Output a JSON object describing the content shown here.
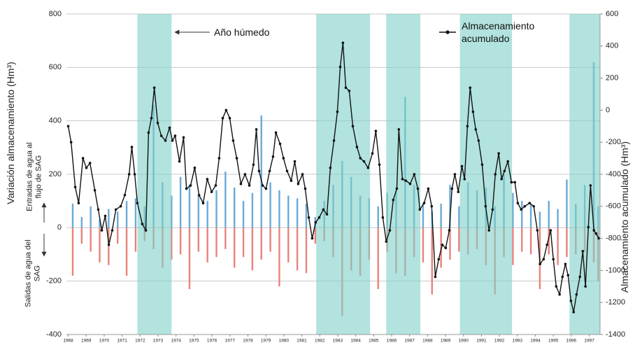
{
  "chart_data": {
    "type": "combo",
    "y_label": "Variación almacenamiento (Hm³)",
    "y2_label": "Almacenamiento acumulado (Hm³)",
    "annotation": "Año húmedo",
    "wet_color": "#7fd0c8",
    "wet_periods": [
      [
        1971.85,
        1973.75
      ],
      [
        1981.8,
        1984.8
      ],
      [
        1985.7,
        1987.6
      ],
      [
        1989.8,
        1992.7
      ],
      [
        1995.9,
        1997.6
      ]
    ],
    "xlim": [
      1967.9,
      1997.6
    ],
    "xticks": [
      1968,
      1969,
      1970,
      1971,
      1972,
      1973,
      1974,
      1975,
      1976,
      1977,
      1978,
      1979,
      1980,
      1981,
      1982,
      1983,
      1984,
      1985,
      1986,
      1987,
      1988,
      1989,
      1990,
      1991,
      1992,
      1993,
      1994,
      1995,
      1996,
      1997
    ],
    "ylim": [
      -400,
      800
    ],
    "yticks": [
      -400,
      -200,
      0,
      200,
      400,
      600,
      800
    ],
    "y2lim": [
      -1400,
      600
    ],
    "y2ticks": [
      -1400,
      -1200,
      -1000,
      -800,
      -600,
      -400,
      -200,
      0,
      200,
      400,
      600
    ],
    "grid": true,
    "series": [
      {
        "name": "Entradas de agua al flujo de SAG",
        "type": "bar",
        "color": "#6aaad8",
        "x": [
          1968.25,
          1968.75,
          1969.25,
          1969.75,
          1970.25,
          1970.75,
          1971.25,
          1971.75,
          1972.25,
          1972.75,
          1973.25,
          1973.75,
          1974.25,
          1974.75,
          1975.25,
          1975.75,
          1976.25,
          1976.75,
          1977.25,
          1977.75,
          1978.25,
          1978.75,
          1979.25,
          1979.75,
          1980.25,
          1980.75,
          1981.25,
          1981.75,
          1982.25,
          1982.75,
          1983.25,
          1983.75,
          1984.25,
          1984.75,
          1985.25,
          1985.75,
          1986.25,
          1986.75,
          1987.25,
          1987.75,
          1988.25,
          1988.75,
          1989.25,
          1989.75,
          1990.25,
          1990.75,
          1991.25,
          1991.75,
          1992.25,
          1992.75,
          1993.25,
          1993.75,
          1994.25,
          1994.75,
          1995.25,
          1995.75,
          1996.25,
          1996.75,
          1997.25,
          1997.5
        ],
        "values": [
          90,
          40,
          80,
          30,
          70,
          60,
          100,
          110,
          80,
          460,
          170,
          120,
          190,
          160,
          120,
          100,
          140,
          210,
          150,
          100,
          130,
          420,
          170,
          140,
          120,
          110,
          90,
          40,
          100,
          160,
          250,
          190,
          120,
          110,
          80,
          130,
          140,
          490,
          160,
          90,
          60,
          90,
          160,
          80,
          170,
          140,
          150,
          80,
          200,
          130,
          100,
          90,
          60,
          100,
          70,
          180,
          90,
          160,
          620,
          80
        ]
      },
      {
        "name": "Salidas de agua del SAG",
        "type": "bar",
        "color": "#e8837a",
        "x": [
          1968.25,
          1968.75,
          1969.25,
          1969.75,
          1970.25,
          1970.75,
          1971.25,
          1971.75,
          1972.25,
          1972.75,
          1973.25,
          1973.75,
          1974.25,
          1974.75,
          1975.25,
          1975.75,
          1976.25,
          1976.75,
          1977.25,
          1977.75,
          1978.25,
          1978.75,
          1979.25,
          1979.75,
          1980.25,
          1980.75,
          1981.25,
          1981.75,
          1982.25,
          1982.75,
          1983.25,
          1983.75,
          1984.25,
          1984.75,
          1985.25,
          1985.75,
          1986.25,
          1986.75,
          1987.25,
          1987.75,
          1988.25,
          1988.75,
          1989.25,
          1989.75,
          1990.25,
          1990.75,
          1991.25,
          1991.75,
          1992.25,
          1992.75,
          1993.25,
          1993.75,
          1994.25,
          1994.75,
          1995.25,
          1995.75,
          1996.25,
          1996.75,
          1997.25,
          1997.5
        ],
        "values": [
          -180,
          -60,
          -90,
          -130,
          -140,
          -60,
          -180,
          -90,
          -50,
          -80,
          -150,
          -120,
          -100,
          -230,
          -90,
          -130,
          -110,
          -80,
          -150,
          -110,
          -160,
          -120,
          -90,
          -220,
          -130,
          -160,
          -170,
          -60,
          -50,
          -110,
          -330,
          -160,
          -180,
          -120,
          -230,
          -90,
          -170,
          -180,
          -110,
          -130,
          -250,
          -150,
          -120,
          -90,
          -100,
          -80,
          -140,
          -250,
          -110,
          -140,
          -90,
          -100,
          -230,
          -100,
          -140,
          -110,
          -100,
          -90,
          -130,
          -200
        ]
      },
      {
        "name": "Almacenamiento acumulado",
        "type": "line",
        "axis": "y2",
        "color": "#111111",
        "x": [
          1968.0,
          1968.16,
          1968.39,
          1968.58,
          1968.82,
          1969.01,
          1969.21,
          1969.48,
          1969.67,
          1969.87,
          1970.06,
          1970.26,
          1970.45,
          1970.65,
          1970.92,
          1971.15,
          1971.39,
          1971.54,
          1971.7,
          1971.85,
          1972.12,
          1972.32,
          1972.47,
          1972.63,
          1972.79,
          1972.98,
          1973.18,
          1973.41,
          1973.64,
          1973.8,
          1973.95,
          1974.19,
          1974.42,
          1974.58,
          1974.81,
          1975.04,
          1975.28,
          1975.51,
          1975.74,
          1975.98,
          1976.21,
          1976.4,
          1976.6,
          1976.79,
          1976.99,
          1977.18,
          1977.38,
          1977.61,
          1977.84,
          1978.08,
          1978.31,
          1978.47,
          1978.62,
          1978.82,
          1979.01,
          1979.21,
          1979.4,
          1979.56,
          1979.79,
          1979.98,
          1980.18,
          1980.41,
          1980.61,
          1980.8,
          1981.04,
          1981.19,
          1981.39,
          1981.58,
          1981.77,
          1981.97,
          1982.2,
          1982.4,
          1982.59,
          1982.79,
          1982.98,
          1983.14,
          1983.29,
          1983.45,
          1983.64,
          1983.84,
          1984.07,
          1984.26,
          1984.46,
          1984.69,
          1984.93,
          1985.12,
          1985.32,
          1985.51,
          1985.7,
          1985.9,
          1986.09,
          1986.29,
          1986.4,
          1986.6,
          1986.79,
          1987.03,
          1987.26,
          1987.46,
          1987.57,
          1987.81,
          1988.04,
          1988.23,
          1988.43,
          1988.62,
          1988.82,
          1989.01,
          1989.21,
          1989.36,
          1989.52,
          1989.71,
          1989.91,
          1990.06,
          1990.22,
          1990.37,
          1990.53,
          1990.68,
          1990.84,
          1991.04,
          1991.23,
          1991.42,
          1991.62,
          1991.77,
          1991.96,
          1992.12,
          1992.28,
          1992.47,
          1992.67,
          1992.86,
          1993.02,
          1993.21,
          1993.41,
          1993.68,
          1993.91,
          1994.11,
          1994.26,
          1994.46,
          1994.65,
          1994.85,
          1995.0,
          1995.16,
          1995.35,
          1995.51,
          1995.67,
          1995.82,
          1995.98,
          1996.13,
          1996.29,
          1996.48,
          1996.64,
          1996.79,
          1996.95,
          1997.07,
          1997.26,
          1997.38,
          1997.53
        ],
        "values": [
          -100,
          -200,
          -480,
          -580,
          -300,
          -360,
          -330,
          -500,
          -620,
          -750,
          -660,
          -840,
          -750,
          -620,
          -600,
          -530,
          -400,
          -230,
          -400,
          -580,
          -710,
          -750,
          -140,
          -50,
          140,
          -80,
          -160,
          -190,
          -110,
          -190,
          -160,
          -320,
          -170,
          -490,
          -470,
          -360,
          -530,
          -580,
          -430,
          -510,
          -470,
          -300,
          -50,
          0,
          -50,
          -190,
          -300,
          -460,
          -400,
          -470,
          -340,
          -120,
          -380,
          -470,
          -490,
          -380,
          -290,
          -140,
          -210,
          -300,
          -380,
          -440,
          -320,
          -460,
          -400,
          -490,
          -670,
          -800,
          -700,
          -670,
          -620,
          -650,
          -360,
          -190,
          -10,
          270,
          420,
          140,
          120,
          -100,
          -230,
          -300,
          -320,
          -360,
          -270,
          -130,
          -340,
          -670,
          -820,
          -750,
          -560,
          -490,
          -120,
          -430,
          -440,
          -460,
          -400,
          -490,
          -620,
          -580,
          -490,
          -600,
          -1040,
          -930,
          -840,
          -860,
          -750,
          -490,
          -400,
          -510,
          -350,
          -430,
          -100,
          140,
          -10,
          -120,
          -190,
          -340,
          -600,
          -750,
          -620,
          -400,
          -270,
          -430,
          -380,
          -320,
          -450,
          -450,
          -580,
          -620,
          -600,
          -580,
          -600,
          -750,
          -960,
          -930,
          -840,
          -750,
          -930,
          -1100,
          -1150,
          -1040,
          -960,
          -1030,
          -1190,
          -1260,
          -1150,
          -1040,
          -880,
          -1100,
          -730,
          -470,
          -750,
          -770,
          -800
        ]
      }
    ]
  }
}
